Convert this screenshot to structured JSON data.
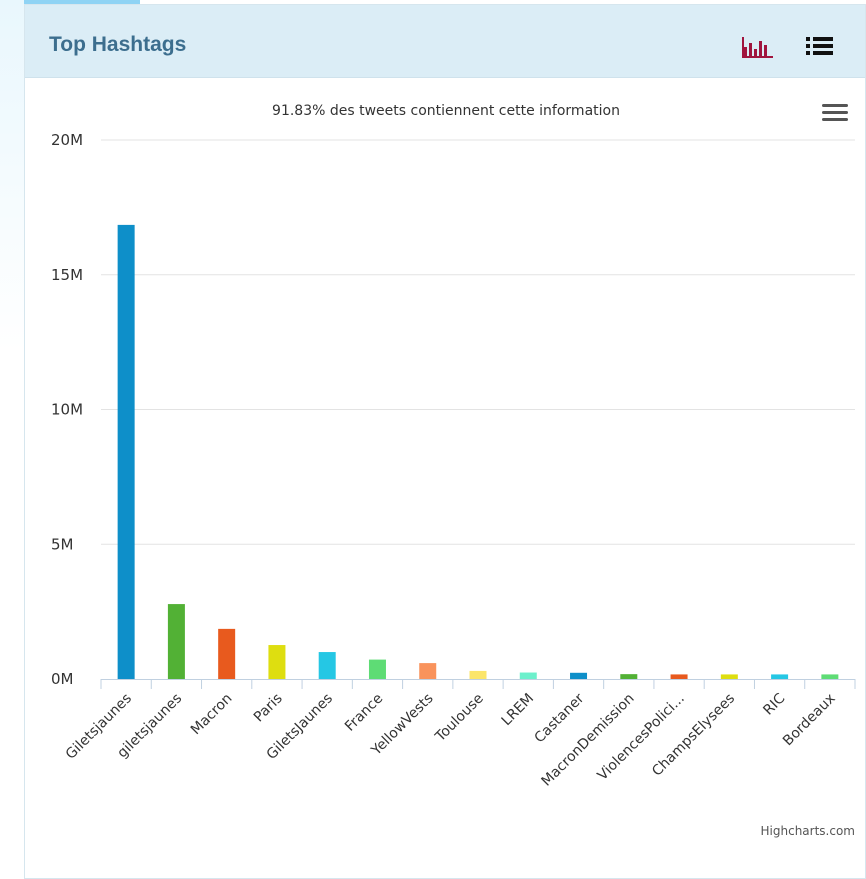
{
  "panel": {
    "title": "Top Hashtags",
    "icons": [
      "bar-chart-icon",
      "list-view-icon"
    ],
    "accent_color": "#a0153e"
  },
  "chart_data": {
    "type": "bar",
    "subtitle": "91.83% des tweets contiennent cette information",
    "categories": [
      "Giletsjaunes",
      "giletsjaunes",
      "Macron",
      "Paris",
      "GiletsJaunes",
      "France",
      "YellowVests",
      "Toulouse",
      "LREM",
      "Castaner",
      "MacronDemission",
      "ViolencesPolici...",
      "ChampsElysees",
      "RIC",
      "Bordeaux"
    ],
    "values": [
      16850000,
      2780000,
      1860000,
      1260000,
      1000000,
      720000,
      590000,
      300000,
      240000,
      230000,
      180000,
      170000,
      170000,
      170000,
      170000
    ],
    "colors": [
      "#0e8fc9",
      "#52b135",
      "#e85a1e",
      "#dede10",
      "#25c7e4",
      "#5edc75",
      "#f9935c",
      "#fbe56a",
      "#6df0cc",
      "#0e8fc9",
      "#52b135",
      "#e85a1e",
      "#dede10",
      "#25c7e4",
      "#5edc75"
    ],
    "yticks": [
      "0M",
      "5M",
      "10M",
      "15M",
      "20M"
    ],
    "ylim": [
      0,
      20000000
    ],
    "grid": true,
    "legend": "none",
    "credits": "Highcharts.com"
  }
}
